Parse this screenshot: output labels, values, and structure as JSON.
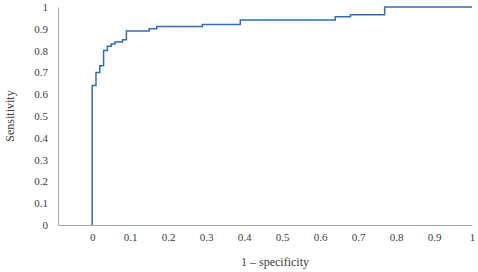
{
  "chart_data": {
    "type": "line",
    "line_style": "step",
    "color": "#2f6db5",
    "x_label": "1 – specificity",
    "y_label": "Sensitivity",
    "x": [
      0,
      0,
      0.01,
      0.01,
      0.02,
      0.02,
      0.03,
      0.03,
      0.04,
      0.04,
      0.05,
      0.05,
      0.06,
      0.06,
      0.08,
      0.08,
      0.09,
      0.09,
      0.15,
      0.15,
      0.17,
      0.17,
      0.29,
      0.29,
      0.39,
      0.39,
      0.64,
      0.64,
      0.68,
      0.68,
      0.77,
      0.77,
      1
    ],
    "values": [
      0,
      0.64,
      0.64,
      0.7,
      0.7,
      0.73,
      0.73,
      0.8,
      0.8,
      0.82,
      0.82,
      0.83,
      0.83,
      0.84,
      0.84,
      0.85,
      0.85,
      0.89,
      0.89,
      0.9,
      0.9,
      0.91,
      0.91,
      0.92,
      0.92,
      0.94,
      0.94,
      0.955,
      0.955,
      0.965,
      0.965,
      1,
      1
    ],
    "xlim": [
      -0.09,
      1
    ],
    "xticks": [
      0,
      0.1,
      0.2,
      0.3,
      0.4,
      0.5,
      0.6,
      0.7,
      0.8,
      0.9,
      1
    ],
    "ylim": [
      0,
      1
    ],
    "yticks": [
      0,
      0.1,
      0.2,
      0.3,
      0.4,
      0.5,
      0.6,
      0.7,
      0.8,
      0.9,
      1
    ],
    "grid": false
  }
}
